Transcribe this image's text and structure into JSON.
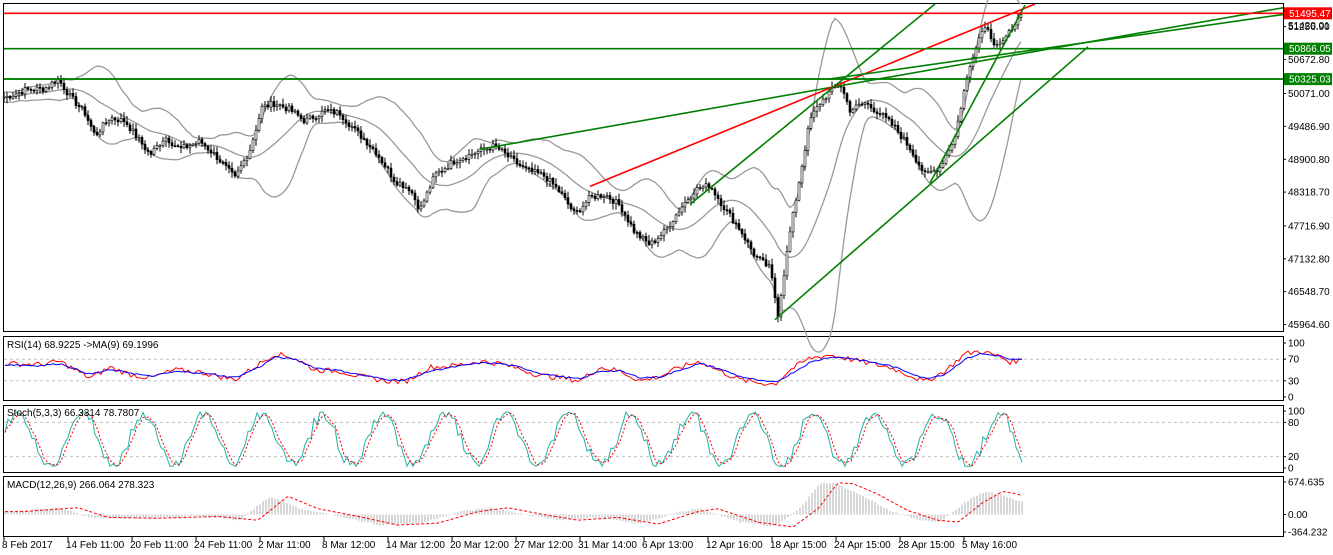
{
  "chart_data": {
    "type": "candlestick",
    "main": {
      "price_ticks": [
        "51256.90",
        "50672.80",
        "50071.00",
        "49486.90",
        "48900.80",
        "48318.70",
        "47716.90",
        "47132.80",
        "46548.70",
        "45964.60"
      ],
      "price_tick_values": [
        51256.9,
        50672.8,
        50071.0,
        49486.9,
        48900.8,
        48318.7,
        47716.9,
        47132.8,
        46548.7,
        45964.6
      ],
      "ylim": [
        45850,
        51660
      ],
      "current_price": "51420.01",
      "levels": [
        {
          "value": 51495.47,
          "label": "51495.47",
          "color": "#ff0000"
        },
        {
          "value": 50866.05,
          "label": "50866.05",
          "color": "#008000"
        },
        {
          "value": 50325.03,
          "label": "50325.03",
          "color": "#008000"
        }
      ],
      "trendlines": [
        {
          "color": "#008000",
          "from": [
            480,
            49080
          ],
          "to": [
            1285,
            51600
          ]
        },
        {
          "color": "#008000",
          "from": [
            0,
            50330
          ],
          "to": [
            1333,
            50330
          ]
        },
        {
          "color": "#ff0000",
          "from": [
            590,
            48420
          ],
          "to": [
            1035,
            51660
          ]
        },
        {
          "color": "#008000",
          "from": [
            690,
            48100
          ],
          "to": [
            935,
            51660
          ]
        },
        {
          "color": "#008000",
          "from": [
            775,
            46050
          ],
          "to": [
            1088,
            50900
          ]
        },
        {
          "color": "#008000",
          "from": [
            930,
            48480
          ],
          "to": [
            1025,
            51640
          ]
        },
        {
          "color": "#008000",
          "from": [
            830,
            50330
          ],
          "to": [
            1333,
            51600
          ]
        }
      ],
      "close_path": [
        [
          5,
          50000
        ],
        [
          25,
          50130
        ],
        [
          45,
          50160
        ],
        [
          58,
          50330
        ],
        [
          70,
          50020
        ],
        [
          85,
          49720
        ],
        [
          95,
          49320
        ],
        [
          110,
          49640
        ],
        [
          125,
          49580
        ],
        [
          140,
          49220
        ],
        [
          150,
          48980
        ],
        [
          165,
          49300
        ],
        [
          180,
          49080
        ],
        [
          200,
          49220
        ],
        [
          215,
          48980
        ],
        [
          235,
          48560
        ],
        [
          250,
          49080
        ],
        [
          262,
          49820
        ],
        [
          275,
          49900
        ],
        [
          290,
          49780
        ],
        [
          305,
          49580
        ],
        [
          325,
          49760
        ],
        [
          340,
          49720
        ],
        [
          355,
          49420
        ],
        [
          375,
          49060
        ],
        [
          395,
          48520
        ],
        [
          410,
          48380
        ],
        [
          420,
          48000
        ],
        [
          435,
          48620
        ],
        [
          455,
          48880
        ],
        [
          475,
          49020
        ],
        [
          495,
          49140
        ],
        [
          510,
          48920
        ],
        [
          525,
          48720
        ],
        [
          545,
          48600
        ],
        [
          560,
          48320
        ],
        [
          575,
          47920
        ],
        [
          590,
          48220
        ],
        [
          605,
          48280
        ],
        [
          620,
          48080
        ],
        [
          635,
          47600
        ],
        [
          650,
          47380
        ],
        [
          665,
          47620
        ],
        [
          680,
          48020
        ],
        [
          695,
          48360
        ],
        [
          710,
          48440
        ],
        [
          725,
          48020
        ],
        [
          740,
          47660
        ],
        [
          755,
          47180
        ],
        [
          770,
          46960
        ],
        [
          778,
          46150
        ],
        [
          790,
          47600
        ],
        [
          800,
          48600
        ],
        [
          810,
          49600
        ],
        [
          820,
          49900
        ],
        [
          830,
          50100
        ],
        [
          840,
          50250
        ],
        [
          850,
          49780
        ],
        [
          865,
          49900
        ],
        [
          880,
          49720
        ],
        [
          895,
          49460
        ],
        [
          910,
          49100
        ],
        [
          925,
          48620
        ],
        [
          940,
          48760
        ],
        [
          955,
          49300
        ],
        [
          965,
          50200
        ],
        [
          975,
          50900
        ],
        [
          985,
          51300
        ],
        [
          995,
          50950
        ],
        [
          1005,
          51000
        ],
        [
          1015,
          51350
        ],
        [
          1022,
          51420
        ]
      ],
      "bollinger": {
        "color": "#999999"
      }
    },
    "rsi": {
      "title": "RSI(14) 68.9225 ->MA(9) 69.1996",
      "ticks": [
        "100",
        "70",
        "30",
        "0"
      ],
      "tick_values": [
        100,
        70,
        30,
        0
      ],
      "ylim": [
        0,
        100
      ],
      "levels": [
        70,
        30
      ],
      "series": [
        [
          5,
          62
        ],
        [
          40,
          60
        ],
        [
          60,
          66
        ],
        [
          90,
          35
        ],
        [
          110,
          55
        ],
        [
          130,
          42
        ],
        [
          150,
          35
        ],
        [
          175,
          50
        ],
        [
          200,
          46
        ],
        [
          235,
          32
        ],
        [
          260,
          62
        ],
        [
          275,
          80
        ],
        [
          295,
          72
        ],
        [
          315,
          50
        ],
        [
          340,
          48
        ],
        [
          360,
          38
        ],
        [
          385,
          30
        ],
        [
          405,
          28
        ],
        [
          430,
          55
        ],
        [
          455,
          58
        ],
        [
          480,
          66
        ],
        [
          500,
          62
        ],
        [
          520,
          52
        ],
        [
          540,
          40
        ],
        [
          560,
          36
        ],
        [
          580,
          30
        ],
        [
          600,
          55
        ],
        [
          620,
          48
        ],
        [
          640,
          30
        ],
        [
          660,
          38
        ],
        [
          680,
          55
        ],
        [
          700,
          66
        ],
        [
          720,
          48
        ],
        [
          740,
          32
        ],
        [
          760,
          26
        ],
        [
          775,
          24
        ],
        [
          790,
          50
        ],
        [
          810,
          72
        ],
        [
          830,
          78
        ],
        [
          850,
          70
        ],
        [
          870,
          62
        ],
        [
          890,
          55
        ],
        [
          910,
          40
        ],
        [
          925,
          28
        ],
        [
          945,
          48
        ],
        [
          965,
          80
        ],
        [
          980,
          85
        ],
        [
          1000,
          75
        ],
        [
          1010,
          65
        ],
        [
          1022,
          69
        ]
      ],
      "ma": [
        [
          5,
          60
        ],
        [
          40,
          58
        ],
        [
          60,
          62
        ],
        [
          90,
          42
        ],
        [
          110,
          50
        ],
        [
          130,
          45
        ],
        [
          150,
          38
        ],
        [
          175,
          47
        ],
        [
          200,
          45
        ],
        [
          235,
          36
        ],
        [
          260,
          56
        ],
        [
          275,
          74
        ],
        [
          295,
          70
        ],
        [
          315,
          54
        ],
        [
          340,
          49
        ],
        [
          360,
          41
        ],
        [
          385,
          33
        ],
        [
          405,
          31
        ],
        [
          430,
          48
        ],
        [
          455,
          56
        ],
        [
          480,
          63
        ],
        [
          500,
          62
        ],
        [
          520,
          55
        ],
        [
          540,
          44
        ],
        [
          560,
          38
        ],
        [
          580,
          33
        ],
        [
          600,
          48
        ],
        [
          620,
          48
        ],
        [
          640,
          36
        ],
        [
          660,
          37
        ],
        [
          680,
          50
        ],
        [
          700,
          62
        ],
        [
          720,
          52
        ],
        [
          740,
          38
        ],
        [
          760,
          30
        ],
        [
          775,
          27
        ],
        [
          790,
          42
        ],
        [
          810,
          64
        ],
        [
          830,
          74
        ],
        [
          850,
          72
        ],
        [
          870,
          65
        ],
        [
          890,
          58
        ],
        [
          910,
          45
        ],
        [
          925,
          34
        ],
        [
          945,
          42
        ],
        [
          965,
          70
        ],
        [
          980,
          80
        ],
        [
          1000,
          76
        ],
        [
          1010,
          69
        ],
        [
          1022,
          69
        ]
      ]
    },
    "stoch": {
      "title": "Stoch(5,3,3) 66.3314 78.7807",
      "ticks": [
        "100",
        "80",
        "20",
        "0"
      ],
      "tick_values": [
        100,
        80,
        20,
        0
      ],
      "ylim": [
        0,
        100
      ],
      "levels": [
        80,
        20
      ]
    },
    "macd": {
      "title": "MACD(12,26,9) 266.064 278.323",
      "ticks": [
        "674.635",
        "0.00",
        "-364.232"
      ],
      "tick_values": [
        674.635,
        0,
        -364.232
      ],
      "ylim": [
        -364.232,
        674.635
      ]
    },
    "x_ticks": [
      "8 Feb 2017",
      "14 Feb 11:00",
      "20 Feb 11:00",
      "24 Feb 11:00",
      "2 Mar 11:00",
      "8 Mar 12:00",
      "14 Mar 12:00",
      "20 Mar 12:00",
      "27 Mar 12:00",
      "31 Mar 14:00",
      "6 Apr 13:00",
      "12 Apr 16:00",
      "18 Apr 15:00",
      "24 Apr 15:00",
      "28 Apr 15:00",
      "5 May 16:00"
    ],
    "colors": {
      "price_line": "#000000",
      "bands": "#999999",
      "rsi": "#ff0000",
      "rsi_ma": "#0000ff",
      "stoch_main": "#20b2aa",
      "stoch_signal": "#ff0000",
      "macd_hist": "#b0b0b0",
      "macd_signal": "#ff0000",
      "grid": "#c0c0c0"
    }
  }
}
